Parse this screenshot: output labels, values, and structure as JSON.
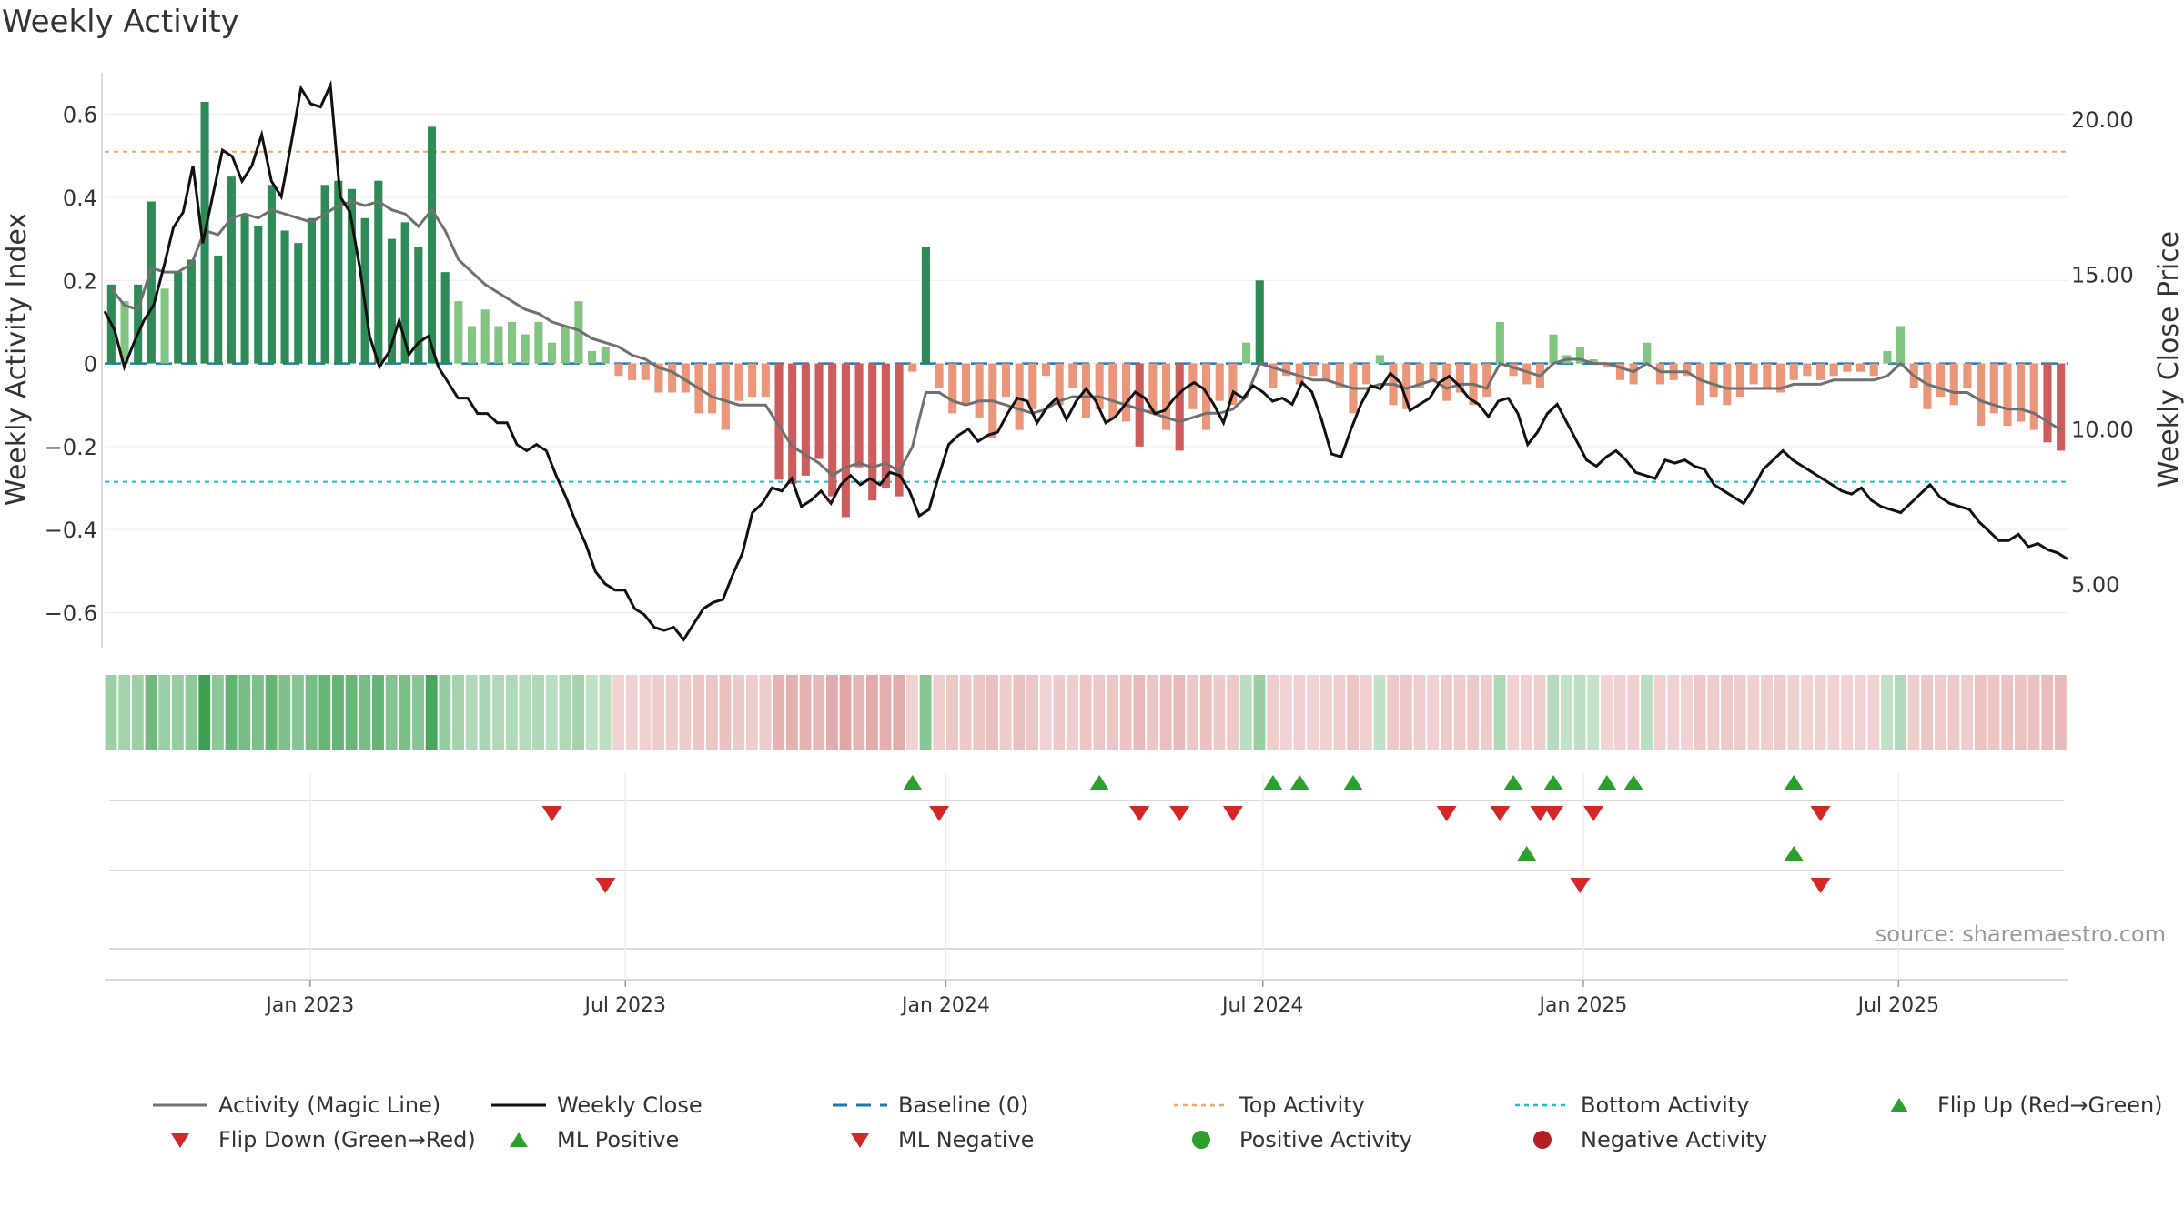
{
  "chart_data": {
    "type": "bar",
    "title": "Weekly Activity",
    "ylabel": "Weekly Activity Index",
    "y2label": "Weekly Close Price",
    "ylim": [
      -0.68,
      0.7
    ],
    "y2lim": [
      3.0,
      21.5
    ],
    "yticks": [
      0.6,
      0.4,
      0.2,
      0,
      -0.2,
      -0.4,
      -0.6
    ],
    "ytick_labels": [
      "0.6",
      "0.4",
      "0.2",
      "0",
      "−0.2",
      "−0.4",
      "−0.6"
    ],
    "y2ticks": [
      20,
      15,
      10,
      5
    ],
    "y2tick_labels": [
      "20.00",
      "15.00",
      "10.00",
      "5.00"
    ],
    "x_start": "2022-09-05",
    "x_end": "2025-10-06",
    "xticks": [
      {
        "date": "2023-01-01",
        "label": "Jan 2023"
      },
      {
        "date": "2023-07-01",
        "label": "Jul 2023"
      },
      {
        "date": "2024-01-01",
        "label": "Jan 2024"
      },
      {
        "date": "2024-07-01",
        "label": "Jul 2024"
      },
      {
        "date": "2025-01-01",
        "label": "Jan 2025"
      },
      {
        "date": "2025-07-01",
        "label": "Jul 2025"
      }
    ],
    "top_activity": 0.51,
    "bottom_activity": -0.285,
    "baseline": 0,
    "activity": [
      0.19,
      0.15,
      0.19,
      0.39,
      0.18,
      0.22,
      0.25,
      0.63,
      0.26,
      0.45,
      0.36,
      0.33,
      0.43,
      0.32,
      0.29,
      0.35,
      0.43,
      0.44,
      0.42,
      0.35,
      0.44,
      0.3,
      0.34,
      0.28,
      0.57,
      0.22,
      0.15,
      0.09,
      0.13,
      0.09,
      0.1,
      0.07,
      0.1,
      0.05,
      0.09,
      0.15,
      0.03,
      0.04,
      -0.03,
      -0.04,
      -0.04,
      -0.07,
      -0.07,
      -0.07,
      -0.12,
      -0.12,
      -0.16,
      -0.09,
      -0.08,
      -0.08,
      -0.28,
      -0.29,
      -0.27,
      -0.23,
      -0.32,
      -0.37,
      -0.25,
      -0.33,
      -0.3,
      -0.32,
      -0.02,
      0.28,
      -0.06,
      -0.12,
      -0.1,
      -0.13,
      -0.18,
      -0.08,
      -0.16,
      -0.11,
      -0.03,
      -0.1,
      -0.06,
      -0.13,
      -0.11,
      -0.13,
      -0.14,
      -0.2,
      -0.12,
      -0.16,
      -0.21,
      -0.11,
      -0.16,
      -0.09,
      -0.1,
      0.05,
      0.2,
      -0.06,
      -0.03,
      -0.05,
      -0.03,
      -0.04,
      -0.06,
      -0.12,
      -0.05,
      0.02,
      -0.1,
      -0.11,
      -0.06,
      -0.04,
      -0.09,
      -0.07,
      -0.1,
      -0.08,
      0.1,
      -0.03,
      -0.05,
      -0.06,
      0.07,
      0.02,
      0.04,
      0.01,
      -0.01,
      -0.04,
      -0.05,
      0.05,
      -0.05,
      -0.04,
      -0.03,
      -0.1,
      -0.08,
      -0.1,
      -0.08,
      -0.05,
      -0.06,
      -0.07,
      -0.04,
      -0.03,
      -0.04,
      -0.03,
      -0.02,
      -0.02,
      -0.03,
      0.03,
      0.09,
      -0.06,
      -0.11,
      -0.08,
      -0.1,
      -0.06,
      -0.15,
      -0.12,
      -0.15,
      -0.14,
      -0.16,
      -0.19,
      -0.21
    ],
    "magic_line": [
      0.18,
      0.14,
      0.13,
      0.23,
      0.22,
      0.22,
      0.24,
      0.32,
      0.31,
      0.35,
      0.36,
      0.35,
      0.37,
      0.36,
      0.35,
      0.34,
      0.36,
      0.38,
      0.39,
      0.38,
      0.39,
      0.37,
      0.36,
      0.33,
      0.37,
      0.32,
      0.25,
      0.22,
      0.19,
      0.17,
      0.15,
      0.13,
      0.12,
      0.1,
      0.09,
      0.08,
      0.06,
      0.05,
      0.04,
      0.02,
      0.01,
      -0.01,
      -0.02,
      -0.04,
      -0.06,
      -0.08,
      -0.09,
      -0.1,
      -0.1,
      -0.1,
      -0.15,
      -0.2,
      -0.22,
      -0.24,
      -0.27,
      -0.25,
      -0.24,
      -0.25,
      -0.24,
      -0.26,
      -0.2,
      -0.07,
      -0.07,
      -0.09,
      -0.1,
      -0.09,
      -0.09,
      -0.1,
      -0.11,
      -0.12,
      -0.11,
      -0.09,
      -0.08,
      -0.08,
      -0.08,
      -0.09,
      -0.1,
      -0.11,
      -0.12,
      -0.13,
      -0.14,
      -0.13,
      -0.12,
      -0.12,
      -0.11,
      -0.08,
      0.0,
      -0.01,
      -0.02,
      -0.03,
      -0.04,
      -0.04,
      -0.05,
      -0.06,
      -0.06,
      -0.05,
      -0.05,
      -0.06,
      -0.05,
      -0.04,
      -0.06,
      -0.05,
      -0.05,
      -0.06,
      0.0,
      -0.01,
      -0.02,
      -0.03,
      0.0,
      0.01,
      0.01,
      0.0,
      0.0,
      -0.01,
      -0.02,
      0.0,
      -0.02,
      -0.02,
      -0.02,
      -0.04,
      -0.05,
      -0.06,
      -0.06,
      -0.06,
      -0.06,
      -0.06,
      -0.05,
      -0.05,
      -0.05,
      -0.04,
      -0.04,
      -0.04,
      -0.04,
      -0.03,
      0.0,
      -0.03,
      -0.05,
      -0.06,
      -0.07,
      -0.07,
      -0.09,
      -0.1,
      -0.11,
      -0.11,
      -0.12,
      -0.14,
      -0.16
    ],
    "weekly_close": [
      13.8,
      13.2,
      12.0,
      12.8,
      13.5,
      14.0,
      15.2,
      16.5,
      17.0,
      18.5,
      16.0,
      17.5,
      19.0,
      18.8,
      18.0,
      18.5,
      19.5,
      18.0,
      17.5,
      19.2,
      21.0,
      20.5,
      20.4,
      21.1,
      17.5,
      17.0,
      15.2,
      13.0,
      12.0,
      12.5,
      13.5,
      12.4,
      12.8,
      13.0,
      12.0,
      11.5,
      11.0,
      11.0,
      10.5,
      10.5,
      10.2,
      10.2,
      9.5,
      9.3,
      9.5,
      9.3,
      8.5,
      7.8,
      7.0,
      6.3,
      5.4,
      5.0,
      4.8,
      4.8,
      4.2,
      4.0,
      3.6,
      3.5,
      3.6,
      3.2,
      3.7,
      4.2,
      4.4,
      4.5,
      5.3,
      6.0,
      7.3,
      7.6,
      8.1,
      8.0,
      8.4,
      7.5,
      7.7,
      8.0,
      7.6,
      8.2,
      8.5,
      8.2,
      8.4,
      8.2,
      8.6,
      8.5,
      8.0,
      7.2,
      7.4,
      8.5,
      9.5,
      9.8,
      10.0,
      9.6,
      9.8,
      9.9,
      10.5,
      11.0,
      10.9,
      10.2,
      10.7,
      11.0,
      10.3,
      10.9,
      11.3,
      10.9,
      10.2,
      10.4,
      10.8,
      11.2,
      11.0,
      10.5,
      10.6,
      11.0,
      11.3,
      11.5,
      11.3,
      10.8,
      10.2,
      11.2,
      11.0,
      11.4,
      11.2,
      10.9,
      11.0,
      10.8,
      11.5,
      11.2,
      10.3,
      9.2,
      9.1,
      10.0,
      10.8,
      11.4,
      11.3,
      11.8,
      11.5,
      10.6,
      10.8,
      11.0,
      11.5,
      11.7,
      11.4,
      11.0,
      10.8,
      10.4,
      10.9,
      11.0,
      10.5,
      9.5,
      9.9,
      10.5,
      10.8,
      10.2,
      9.6,
      9.0,
      8.8,
      9.1,
      9.3,
      9.0,
      8.6,
      8.5,
      8.4,
      9.0,
      8.9,
      9.0,
      8.8,
      8.7,
      8.2,
      8.0,
      7.8,
      7.6,
      8.1,
      8.7,
      9.0,
      9.3,
      9.0,
      8.8,
      8.6,
      8.4,
      8.2,
      8.0,
      7.9,
      8.1,
      7.7,
      7.5,
      7.4,
      7.3,
      7.6,
      7.9,
      8.2,
      7.8,
      7.6,
      7.5,
      7.4,
      7.0,
      6.7,
      6.4,
      6.4,
      6.6,
      6.2,
      6.3,
      6.1,
      6.0,
      5.8
    ],
    "flip_up": [
      60,
      74,
      87,
      89,
      93,
      105,
      108,
      112,
      114,
      126
    ],
    "flip_down": [
      33,
      62,
      77,
      80,
      84,
      100,
      104,
      107,
      108,
      111,
      128
    ],
    "ml_positive": [
      106,
      126
    ],
    "ml_negative": [
      37,
      110,
      128
    ],
    "legend": [
      {
        "label": "Activity (Magic Line)",
        "color": "#707070",
        "style": "line"
      },
      {
        "label": "Weekly Close",
        "color": "#111111",
        "style": "line"
      },
      {
        "label": "Baseline (0)",
        "color": "#1f77b4",
        "style": "dash"
      },
      {
        "label": "Top Activity",
        "color": "#f4a460",
        "style": "dot"
      },
      {
        "label": "Bottom Activity",
        "color": "#17becf",
        "style": "dot"
      },
      {
        "label": "Flip Up (Red→Green)",
        "color": "#2ca02c",
        "style": "tri-up"
      },
      {
        "label": "Flip Down (Green→Red)",
        "color": "#d62728",
        "style": "tri-down"
      },
      {
        "label": "ML Positive",
        "color": "#2ca02c",
        "style": "tri-up"
      },
      {
        "label": "ML Negative",
        "color": "#d62728",
        "style": "tri-down"
      },
      {
        "label": "Positive Activity",
        "color": "#2ca02c",
        "style": "circle"
      },
      {
        "label": "Negative Activity",
        "color": "#b22222",
        "style": "circle"
      }
    ]
  },
  "source": "source: sharemaestro.com"
}
